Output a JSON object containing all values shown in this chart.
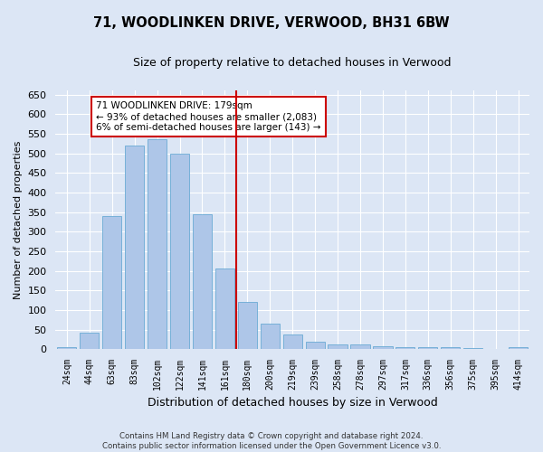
{
  "title": "71, WOODLINKEN DRIVE, VERWOOD, BH31 6BW",
  "subtitle": "Size of property relative to detached houses in Verwood",
  "xlabel": "Distribution of detached houses by size in Verwood",
  "ylabel": "Number of detached properties",
  "categories": [
    "24sqm",
    "44sqm",
    "63sqm",
    "83sqm",
    "102sqm",
    "122sqm",
    "141sqm",
    "161sqm",
    "180sqm",
    "200sqm",
    "219sqm",
    "239sqm",
    "258sqm",
    "278sqm",
    "297sqm",
    "317sqm",
    "336sqm",
    "356sqm",
    "375sqm",
    "395sqm",
    "414sqm"
  ],
  "values": [
    5,
    42,
    340,
    520,
    535,
    500,
    345,
    205,
    120,
    65,
    38,
    18,
    12,
    13,
    7,
    5,
    5,
    5,
    2,
    1,
    4
  ],
  "bar_color": "#aec6e8",
  "bar_edgecolor": "#6aaad4",
  "highlight_index": 8,
  "highlight_line_color": "#cc0000",
  "annotation_text": "71 WOODLINKEN DRIVE: 179sqm\n← 93% of detached houses are smaller (2,083)\n6% of semi-detached houses are larger (143) →",
  "annotation_box_edgecolor": "#cc0000",
  "ylim": [
    0,
    660
  ],
  "yticks": [
    0,
    50,
    100,
    150,
    200,
    250,
    300,
    350,
    400,
    450,
    500,
    550,
    600,
    650
  ],
  "fig_bg_color": "#dce6f5",
  "axes_bg_color": "#dce6f5",
  "grid_color": "#ffffff",
  "footer_line1": "Contains HM Land Registry data © Crown copyright and database right 2024.",
  "footer_line2": "Contains public sector information licensed under the Open Government Licence v3.0."
}
